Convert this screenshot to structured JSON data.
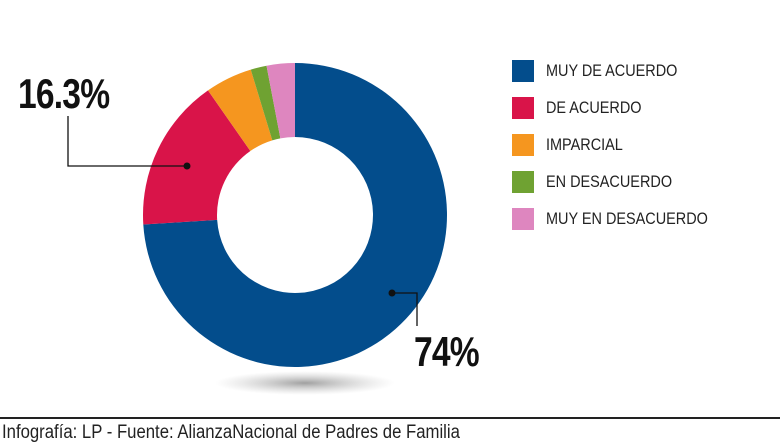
{
  "chart_data": {
    "type": "pie",
    "donut": true,
    "categories": [
      "MUY DE ACUERDO",
      "DE ACUERDO",
      "IMPARCIAL",
      "EN DESACUERDO",
      "MUY EN DESACUERDO"
    ],
    "values": [
      74,
      16.3,
      5,
      1.7,
      3
    ],
    "colors": [
      "#034d8c",
      "#d91449",
      "#f5961f",
      "#6fa232",
      "#de86bf"
    ],
    "data_labels": {
      "muy_de_acuerdo": "74%",
      "de_acuerdo": "16.3%"
    },
    "legend_position": "right"
  },
  "credit": "Infografía: LP - Fuente: AlianzaNacional de Padres de Familia"
}
